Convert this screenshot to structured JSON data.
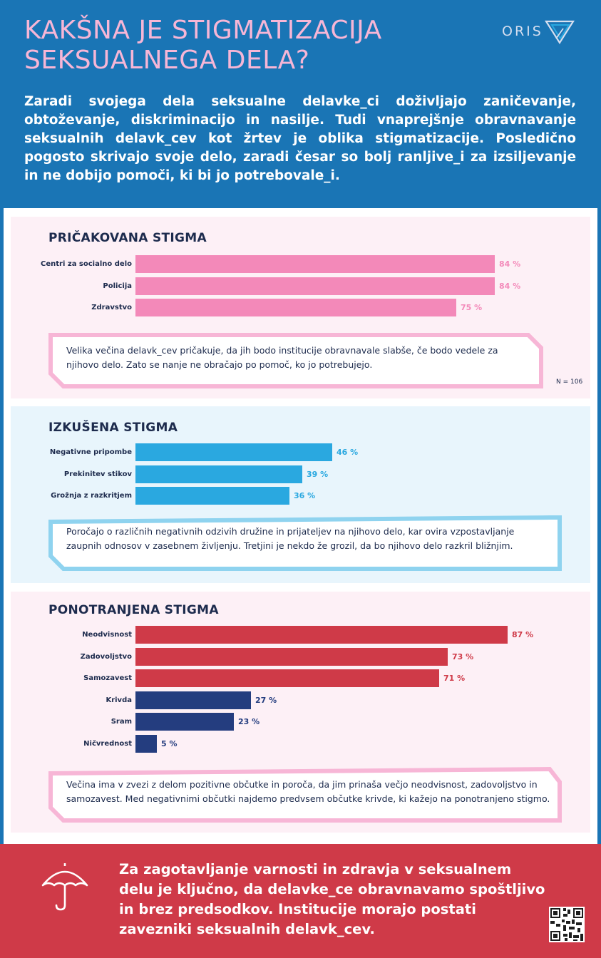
{
  "header": {
    "title_line1": "KAKŠNA JE STIGMATIZACIJA",
    "title_line2": "SEKSUALNEGA DELA?",
    "logo_text": "ORIS",
    "intro": "Zaradi svojega dela seksualne delavke_ci doživljajo zaničevanje, obtoževanje, diskriminacijo in nasilje. Tudi vnaprejšnje obravnavanje seksualnih delavk_cev kot žrtev je oblika stigmatizacije. Posledično pogosto skrivajo svoje delo, zaradi česar so bolj ranljive_i za izsiljevanje in ne dobijo pomoči, ki bi jo potrebovale_i."
  },
  "colors": {
    "header_bg": "#1a75b5",
    "title": "#f7b6d6",
    "pink_bar": "#f389b9",
    "blue_bar": "#2aa8e0",
    "red_bar": "#cf3a48",
    "navy_bar": "#243d7f",
    "footer_bg": "#cf3a48"
  },
  "chart_data": [
    {
      "type": "bar",
      "orientation": "horizontal",
      "title": "PRIČAKOVANA STIGMA",
      "categories": [
        "Centri za socialno delo",
        "Policija",
        "Zdravstvo"
      ],
      "values": [
        84,
        84,
        75
      ],
      "value_labels": [
        "84 %",
        "84 %",
        "75 %"
      ],
      "unit": "%",
      "xlim": [
        0,
        100
      ],
      "n_label": "N = 106",
      "note": "Velika večina delavk_cev pričakuje, da jih bodo institucije obravnavale slabše, če bodo vedele za njihovo delo. Zato se nanje ne obračajo po pomoč, ko jo potrebujejo."
    },
    {
      "type": "bar",
      "orientation": "horizontal",
      "title": "IZKUŠENA STIGMA",
      "categories": [
        "Negativne pripombe",
        "Prekinitev stikov",
        "Grožnja z razkritjem"
      ],
      "values": [
        46,
        39,
        36
      ],
      "value_labels": [
        "46 %",
        "39 %",
        "36 %"
      ],
      "unit": "%",
      "xlim": [
        0,
        100
      ],
      "note": "Poročajo o različnih negativnih odzivih družine in prijateljev na njihovo delo, kar ovira vzpostavljanje zaupnih odnosov v zasebnem življenju. Tretjini je nekdo že grozil, da bo njihovo delo razkril bližnjim."
    },
    {
      "type": "bar",
      "orientation": "horizontal",
      "title": "PONOTRANJENA STIGMA",
      "categories": [
        "Neodvisnost",
        "Zadovoljstvo",
        "Samozavest",
        "Krivda",
        "Sram",
        "Ničvrednost"
      ],
      "values": [
        87,
        73,
        71,
        27,
        23,
        5
      ],
      "value_labels": [
        "87 %",
        "73 %",
        "71 %",
        "27 %",
        "23 %",
        "5 %"
      ],
      "groups": [
        "positive",
        "positive",
        "positive",
        "negative",
        "negative",
        "negative"
      ],
      "unit": "%",
      "xlim": [
        0,
        100
      ],
      "note": "Večina ima v zvezi z delom pozitivne občutke in poroča, da jim prinaša večjo neodvisnost, zadovoljstvo in samozavest. Med negativnimi občutki najdemo predvsem občutke krivde, ki kažejo na ponotranjeno stigmo."
    }
  ],
  "footer": {
    "icon": "umbrella-icon",
    "text": "Za zagotavljanje varnosti in zdravja v seksualnem delu je ključno, da delavke_ce obravnavamo spoštljivo in brez predsodkov. Institucije morajo postati zavezniki seksualnih delavk_cev.",
    "qr": "qr-code-icon"
  }
}
